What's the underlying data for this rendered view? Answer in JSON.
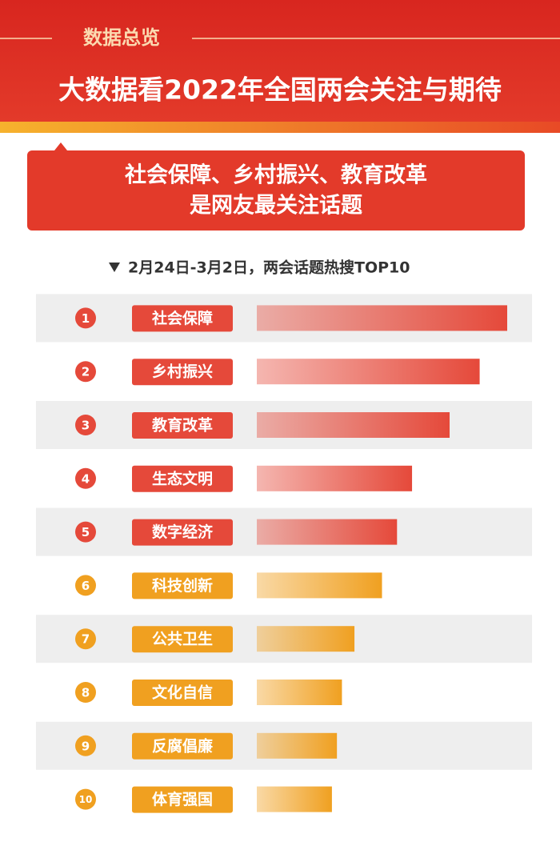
{
  "header": {
    "tag": "数据总览",
    "title": "大数据看2022年全国两会关注与期待"
  },
  "banner": {
    "line1": "社会保障、乡村振兴、教育改革",
    "line2": "是网友最关注话题"
  },
  "chart_data": {
    "type": "bar",
    "subtitle": "2月24日-3月2日，两会话题热搜TOP10",
    "ranks": [
      "1",
      "2",
      "3",
      "4",
      "5",
      "6",
      "7",
      "8",
      "9",
      "10"
    ],
    "categories": [
      "社会保障",
      "乡村振兴",
      "教育改革",
      "生态文明",
      "数字经济",
      "科技创新",
      "公共卫生",
      "文化自信",
      "反腐倡廉",
      "体育强国"
    ],
    "values": [
      100,
      89,
      77,
      62,
      56,
      50,
      39,
      34,
      32,
      30
    ],
    "colors": [
      "#e5493a",
      "#e5493a",
      "#e5493a",
      "#e5493a",
      "#e5493a",
      "#f0a020",
      "#f0a020",
      "#f0a020",
      "#f0a020",
      "#f0a020"
    ],
    "xlim": [
      0,
      100
    ]
  }
}
